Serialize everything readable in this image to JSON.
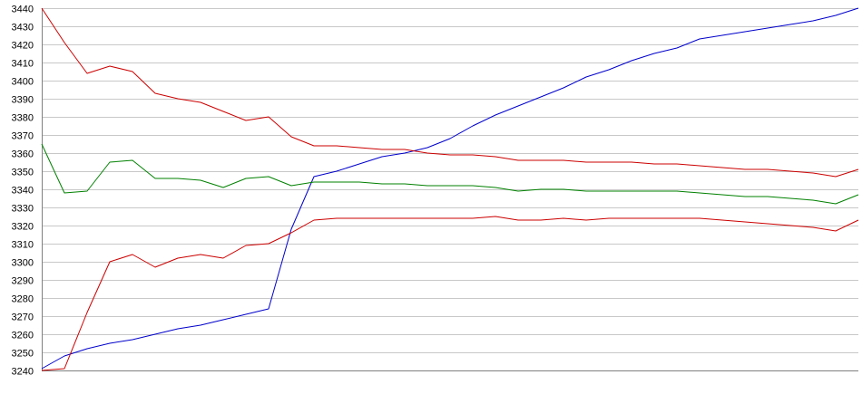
{
  "chart_data": {
    "type": "line",
    "title": "",
    "xlabel": "",
    "ylabel": "",
    "ylim": [
      3240,
      3440
    ],
    "yticks": [
      3240,
      3250,
      3260,
      3270,
      3280,
      3290,
      3300,
      3310,
      3320,
      3330,
      3340,
      3350,
      3360,
      3370,
      3380,
      3390,
      3400,
      3410,
      3420,
      3430,
      3440
    ],
    "grid": "horizontal",
    "legend": "none",
    "x": [
      0,
      5,
      10,
      15,
      20,
      25,
      30,
      35,
      40,
      45,
      50,
      55,
      60,
      65,
      70,
      75,
      80,
      85,
      90,
      95,
      100,
      105,
      110,
      115,
      120,
      125,
      130,
      135,
      140,
      145,
      150,
      155,
      160,
      165,
      170,
      175,
      180
    ],
    "xlim": [
      0,
      180
    ],
    "series": [
      {
        "color": "#0000cc",
        "values": [
          3241,
          3248,
          3252,
          3255,
          3257,
          3260,
          3263,
          3265,
          3268,
          3271,
          3274,
          3318,
          3347,
          3350,
          3354,
          3358,
          3360,
          3363,
          3368,
          3375,
          3381,
          3386,
          3391,
          3396,
          3402,
          3406,
          3411,
          3415,
          3418,
          3423,
          3425,
          3427,
          3429,
          3431,
          3433,
          3436,
          3440
        ]
      },
      {
        "color": "#cc0000",
        "values": [
          3440,
          3421,
          3404,
          3408,
          3405,
          3393,
          3390,
          3388,
          3383,
          3378,
          3380,
          3369,
          3364,
          3364,
          3363,
          3362,
          3362,
          3360,
          3359,
          3359,
          3358,
          3356,
          3356,
          3356,
          3355,
          3355,
          3355,
          3354,
          3354,
          3353,
          3352,
          3351,
          3351,
          3350,
          3349,
          3347,
          3351
        ]
      },
      {
        "color": "#008000",
        "values": [
          3365,
          3338,
          3339,
          3355,
          3356,
          3346,
          3346,
          3345,
          3341,
          3346,
          3347,
          3342,
          3344,
          3344,
          3344,
          3343,
          3343,
          3342,
          3342,
          3342,
          3341,
          3339,
          3340,
          3340,
          3339,
          3339,
          3339,
          3339,
          3339,
          3338,
          3337,
          3336,
          3336,
          3335,
          3334,
          3332,
          3337
        ]
      },
      {
        "color": "#cc0000",
        "values": [
          3240,
          3241,
          3272,
          3300,
          3304,
          3297,
          3302,
          3304,
          3302,
          3309,
          3310,
          3316,
          3323,
          3324,
          3324,
          3324,
          3324,
          3324,
          3324,
          3324,
          3325,
          3323,
          3323,
          3324,
          3323,
          3324,
          3324,
          3324,
          3324,
          3324,
          3323,
          3322,
          3321,
          3320,
          3319,
          3317,
          3323
        ]
      }
    ]
  }
}
